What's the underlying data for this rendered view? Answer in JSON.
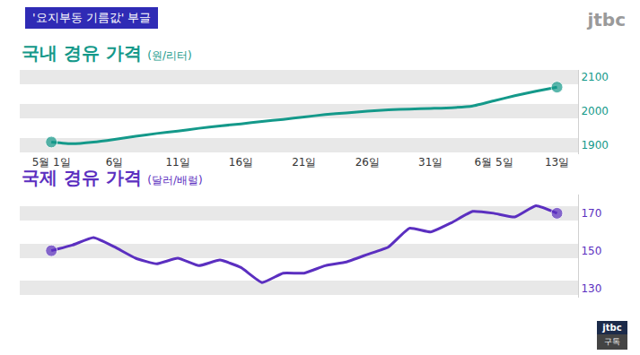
{
  "header": "'요지부동 기름값' 부글",
  "logo": "jtbc",
  "badge": "구독",
  "chart_data": [
    {
      "type": "line",
      "title": "국내 경유 가격",
      "ylabel": "(원/리터)",
      "categories": [
        "5월 1일",
        null,
        null,
        "6일",
        null,
        null,
        "11일",
        null,
        null,
        "16일",
        null,
        null,
        "21일",
        null,
        null,
        "26일",
        null,
        null,
        "31일",
        null,
        null,
        "6월 5일",
        null,
        null,
        "13일"
      ],
      "values": [
        1910,
        1905,
        1910,
        1918,
        1927,
        1935,
        1942,
        1950,
        1957,
        1963,
        1970,
        1976,
        1983,
        1990,
        1995,
        2000,
        2004,
        2006,
        2008,
        2010,
        2015,
        2030,
        2045,
        2058,
        2070
      ],
      "color": "#14998a",
      "marker": "ends",
      "ylim": [
        1875,
        2120
      ],
      "yticks": [
        1900,
        2000,
        2100
      ],
      "grid": true
    },
    {
      "type": "line",
      "title": "국제 경유 가격",
      "ylabel": "(달러/배럴)",
      "categories": [
        "5월 1일",
        null,
        null,
        "6일",
        null,
        null,
        "11일",
        null,
        null,
        "16일",
        null,
        null,
        "21일",
        null,
        null,
        "26일",
        null,
        null,
        "31일",
        null,
        null,
        "6월 5일",
        null,
        null,
        "13일"
      ],
      "values": [
        150,
        153,
        157,
        152,
        146,
        143,
        146,
        142,
        145,
        141,
        133,
        138,
        138,
        142,
        144,
        148,
        152,
        162,
        160,
        165,
        171,
        170,
        168,
        174,
        170
      ],
      "color": "#5b2fc0",
      "marker": "ends",
      "ylim": [
        125,
        180
      ],
      "yticks": [
        130,
        150,
        170
      ],
      "grid": true,
      "tick_labels": "y"
    }
  ]
}
